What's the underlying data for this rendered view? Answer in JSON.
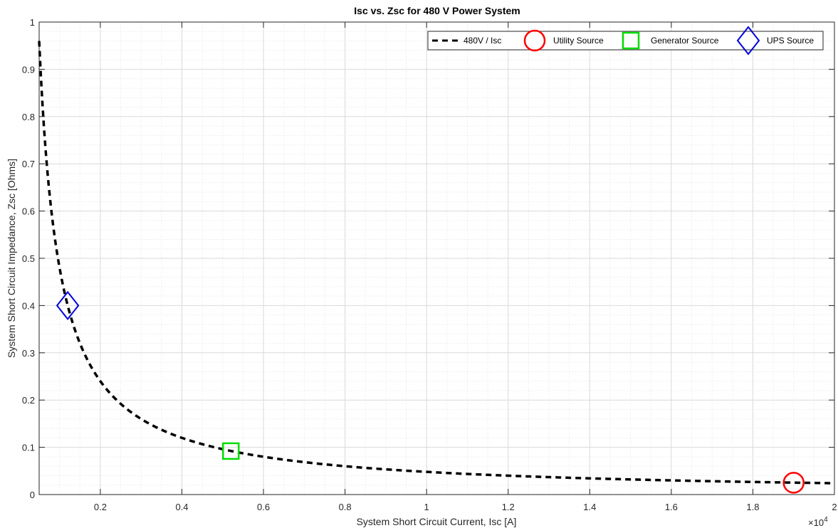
{
  "chart_data": {
    "type": "line",
    "title": "Isc vs. Zsc for 480 V Power System",
    "xlabel": "System Short Circuit Current, Isc [A]",
    "ylabel": "System Short Circuit Impedance, Zsc [Ohms]",
    "xlim": [
      500,
      20000
    ],
    "ylim": [
      0,
      1
    ],
    "x_ticks": [
      2000,
      4000,
      6000,
      8000,
      10000,
      12000,
      14000,
      16000,
      18000,
      20000
    ],
    "x_tick_labels": [
      "0.2",
      "0.4",
      "0.6",
      "0.8",
      "1",
      "1.2",
      "1.4",
      "1.6",
      "1.8",
      "2"
    ],
    "x_exponent_base": "×10",
    "x_exponent_power": "4",
    "y_ticks": [
      0,
      0.1,
      0.2,
      0.3,
      0.4,
      0.5,
      0.6,
      0.7,
      0.8,
      0.9,
      1
    ],
    "y_tick_labels": [
      "0",
      "0.1",
      "0.2",
      "0.3",
      "0.4",
      "0.5",
      "0.6",
      "0.7",
      "0.8",
      "0.9",
      "1"
    ],
    "grid": true,
    "minor_grid": true,
    "legend_position": "top-right",
    "series": [
      {
        "name": "480V / Isc",
        "kind": "line",
        "style": "dashed",
        "color": "#000000",
        "voltage": 480
      },
      {
        "name": "Utility Source",
        "kind": "marker",
        "marker": "circle",
        "color": "#ff0000",
        "x": 19000,
        "y": 0.025
      },
      {
        "name": "Generator Source",
        "kind": "marker",
        "marker": "square",
        "color": "#00dd00",
        "x": 5200,
        "y": 0.092
      },
      {
        "name": "UPS Source",
        "kind": "marker",
        "marker": "diamond",
        "color": "#0000dd",
        "x": 1200,
        "y": 0.4
      }
    ]
  }
}
